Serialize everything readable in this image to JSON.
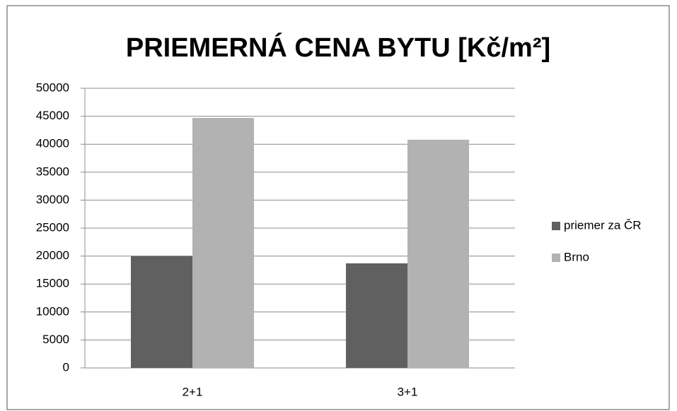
{
  "chart_data": {
    "type": "bar",
    "title": "PRIEMERNÁ CENA BYTU [Kč/m²]",
    "categories": [
      "2+1",
      "3+1"
    ],
    "series": [
      {
        "name": "priemer za ČR",
        "color": "#606060",
        "values": [
          20000,
          18700
        ]
      },
      {
        "name": "Brno",
        "color": "#b2b2b2",
        "values": [
          44700,
          40800
        ]
      }
    ],
    "ylim": [
      0,
      50000
    ],
    "yticks": [
      0,
      5000,
      10000,
      15000,
      20000,
      25000,
      30000,
      35000,
      40000,
      45000,
      50000
    ],
    "grid": true,
    "legend": "right"
  }
}
